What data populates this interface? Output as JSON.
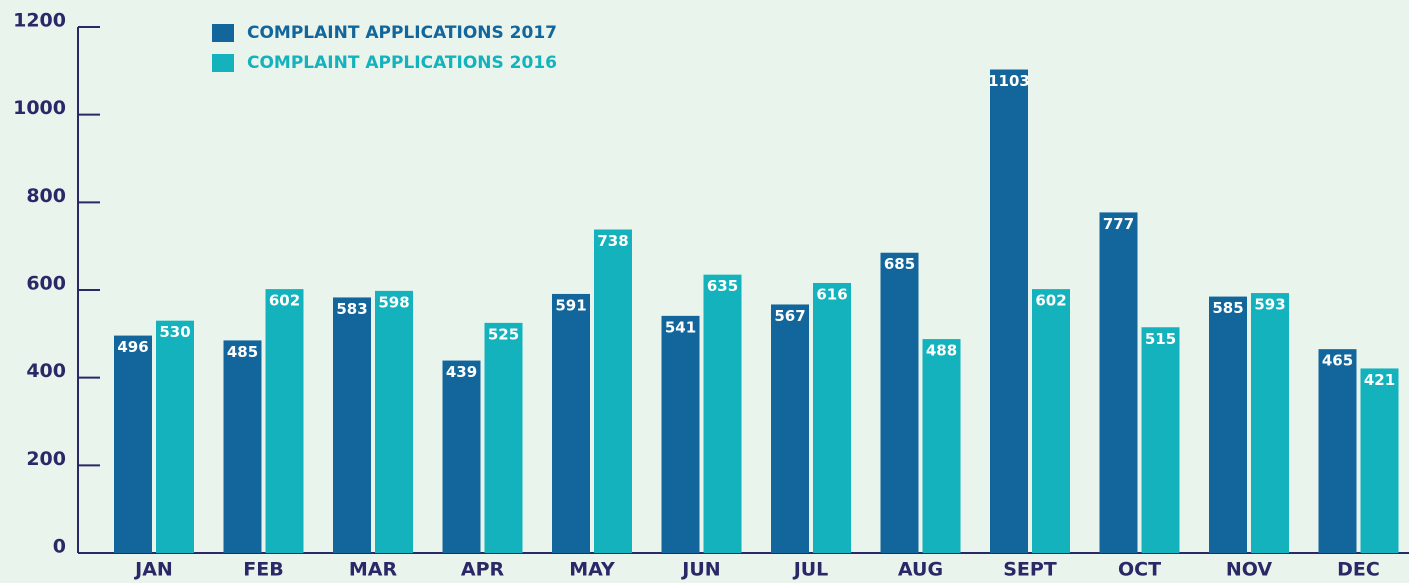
{
  "chart_data": {
    "type": "bar",
    "categories": [
      "JAN",
      "FEB",
      "MAR",
      "APR",
      "MAY",
      "JUN",
      "JUL",
      "AUG",
      "SEPT",
      "OCT",
      "NOV",
      "DEC"
    ],
    "series": [
      {
        "name": "COMPLAINT APPLICATIONS 2017",
        "color": "#12669c",
        "values": [
          496,
          485,
          583,
          439,
          591,
          541,
          567,
          685,
          1103,
          777,
          585,
          465
        ]
      },
      {
        "name": "COMPLAINT APPLICATIONS 2016",
        "color": "#14b2bc",
        "values": [
          530,
          602,
          598,
          525,
          738,
          635,
          616,
          488,
          602,
          515,
          593,
          421
        ]
      }
    ],
    "ylim": [
      0,
      1200
    ],
    "yticks": [
      0,
      200,
      400,
      600,
      800,
      1000,
      1200
    ],
    "legend": "top-left"
  }
}
